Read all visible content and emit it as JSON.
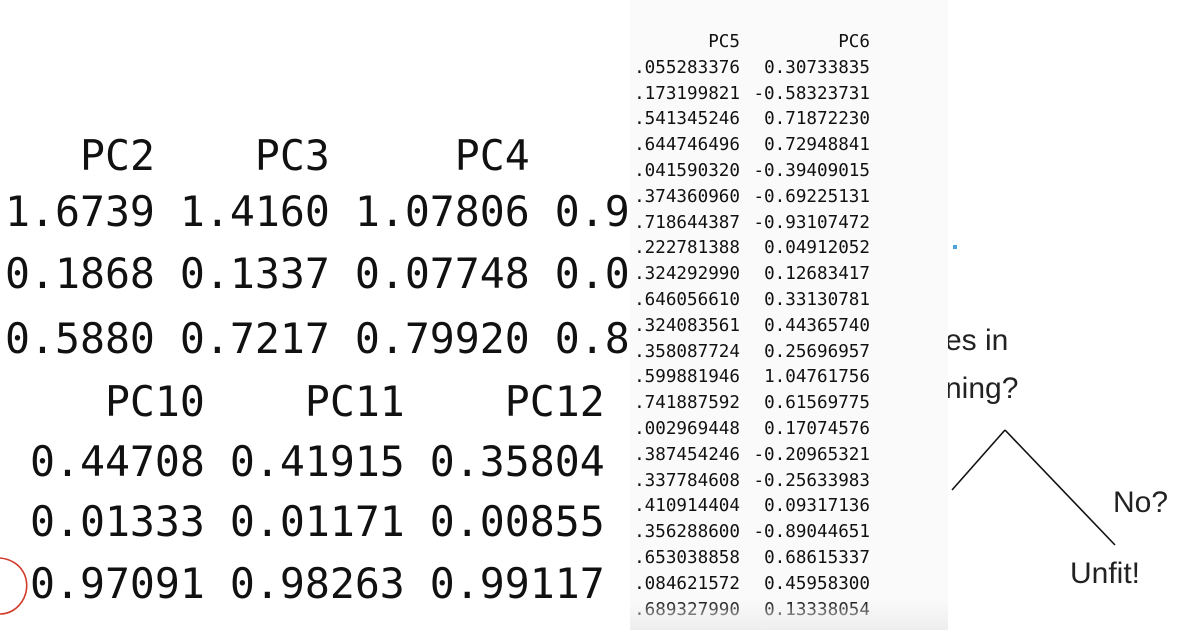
{
  "left_table": {
    "top_header": [
      "PC2",
      "PC3",
      "PC4"
    ],
    "top_rows": [
      [
        "1.6739",
        "1.4160",
        "1.07806",
        "0.9"
      ],
      [
        "0.1868",
        "0.1337",
        "0.07748",
        "0.0"
      ],
      [
        "0.5880",
        "0.7217",
        "0.79920",
        "0.8"
      ]
    ],
    "bottom_header": [
      "PC10",
      "PC11",
      "PC12"
    ],
    "bottom_rows": [
      [
        "0.44708",
        "0.41915",
        "0.35804"
      ],
      [
        "0.01333",
        "0.01171",
        "0.00855"
      ],
      [
        "0.97091",
        "0.98263",
        "0.99117"
      ]
    ],
    "annotation_color": "#d23a2a"
  },
  "mid_table": {
    "headers": [
      "PC5",
      "PC6"
    ],
    "rows": [
      [
        ".055283376",
        "0.30733835"
      ],
      [
        ".173199821",
        "-0.58323731"
      ],
      [
        ".541345246",
        "0.71872230"
      ],
      [
        ".644746496",
        "0.72948841"
      ],
      [
        ".041590320",
        "-0.39409015"
      ],
      [
        ".374360960",
        "-0.69225131"
      ],
      [
        ".718644387",
        "-0.93107472"
      ],
      [
        ".222781388",
        "0.04912052"
      ],
      [
        ".324292990",
        "0.12683417"
      ],
      [
        ".646056610",
        "0.33130781"
      ],
      [
        ".324083561",
        "0.44365740"
      ],
      [
        ".358087724",
        "0.25696957"
      ],
      [
        ".599881946",
        "1.04761756"
      ],
      [
        ".741887592",
        "0.61569775"
      ],
      [
        ".002969448",
        "0.17074576"
      ],
      [
        ".387454246",
        "-0.20965321"
      ],
      [
        ".337784608",
        "-0.25633983"
      ],
      [
        ".410914404",
        "0.09317136"
      ],
      [
        ".356288600",
        "-0.89044651"
      ],
      [
        ".653038858",
        "0.68615337"
      ],
      [
        ".084621572",
        "0.45958300"
      ],
      [
        ".689327990",
        "0.13338054"
      ]
    ]
  },
  "tree": {
    "question_line1": "es in",
    "question_line2": "ning?",
    "branch_label": "No?",
    "leaf_label": "Unfit!"
  }
}
